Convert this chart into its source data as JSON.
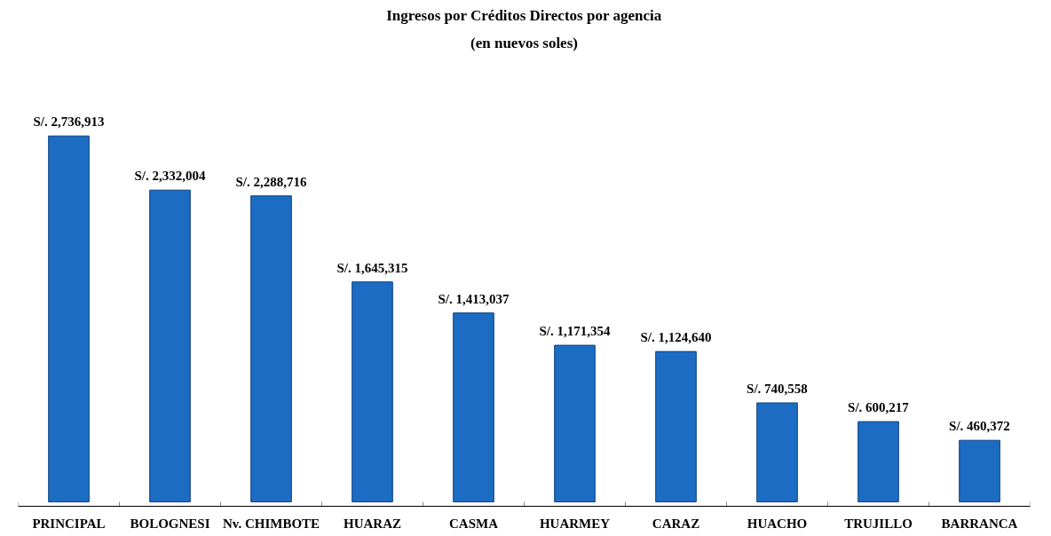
{
  "chart_data": {
    "type": "bar",
    "title": "Ingresos por Créditos Directos por agencia",
    "subtitle": "(en nuevos soles)",
    "categories": [
      "PRINCIPAL",
      "BOLOGNESI",
      "Nv. CHIMBOTE",
      "HUARAZ",
      "CASMA",
      "HUARMEY",
      "CARAZ",
      "HUACHO",
      "TRUJILLO",
      "BARRANCA"
    ],
    "values": [
      2736913,
      2332004,
      2288716,
      1645315,
      1413037,
      1171354,
      1124640,
      740558,
      600217,
      460372
    ],
    "value_labels": [
      "S/. 2,736,913",
      "S/. 2,332,004",
      "S/. 2,288,716",
      "S/. 1,645,315",
      "S/. 1,413,037",
      "S/. 1,171,354",
      "S/. 1,124,640",
      "S/. 740,558",
      "S/. 600,217",
      "S/. 460,372"
    ],
    "color": "#1c6cc4",
    "grid": false,
    "tick_labels": "x"
  }
}
